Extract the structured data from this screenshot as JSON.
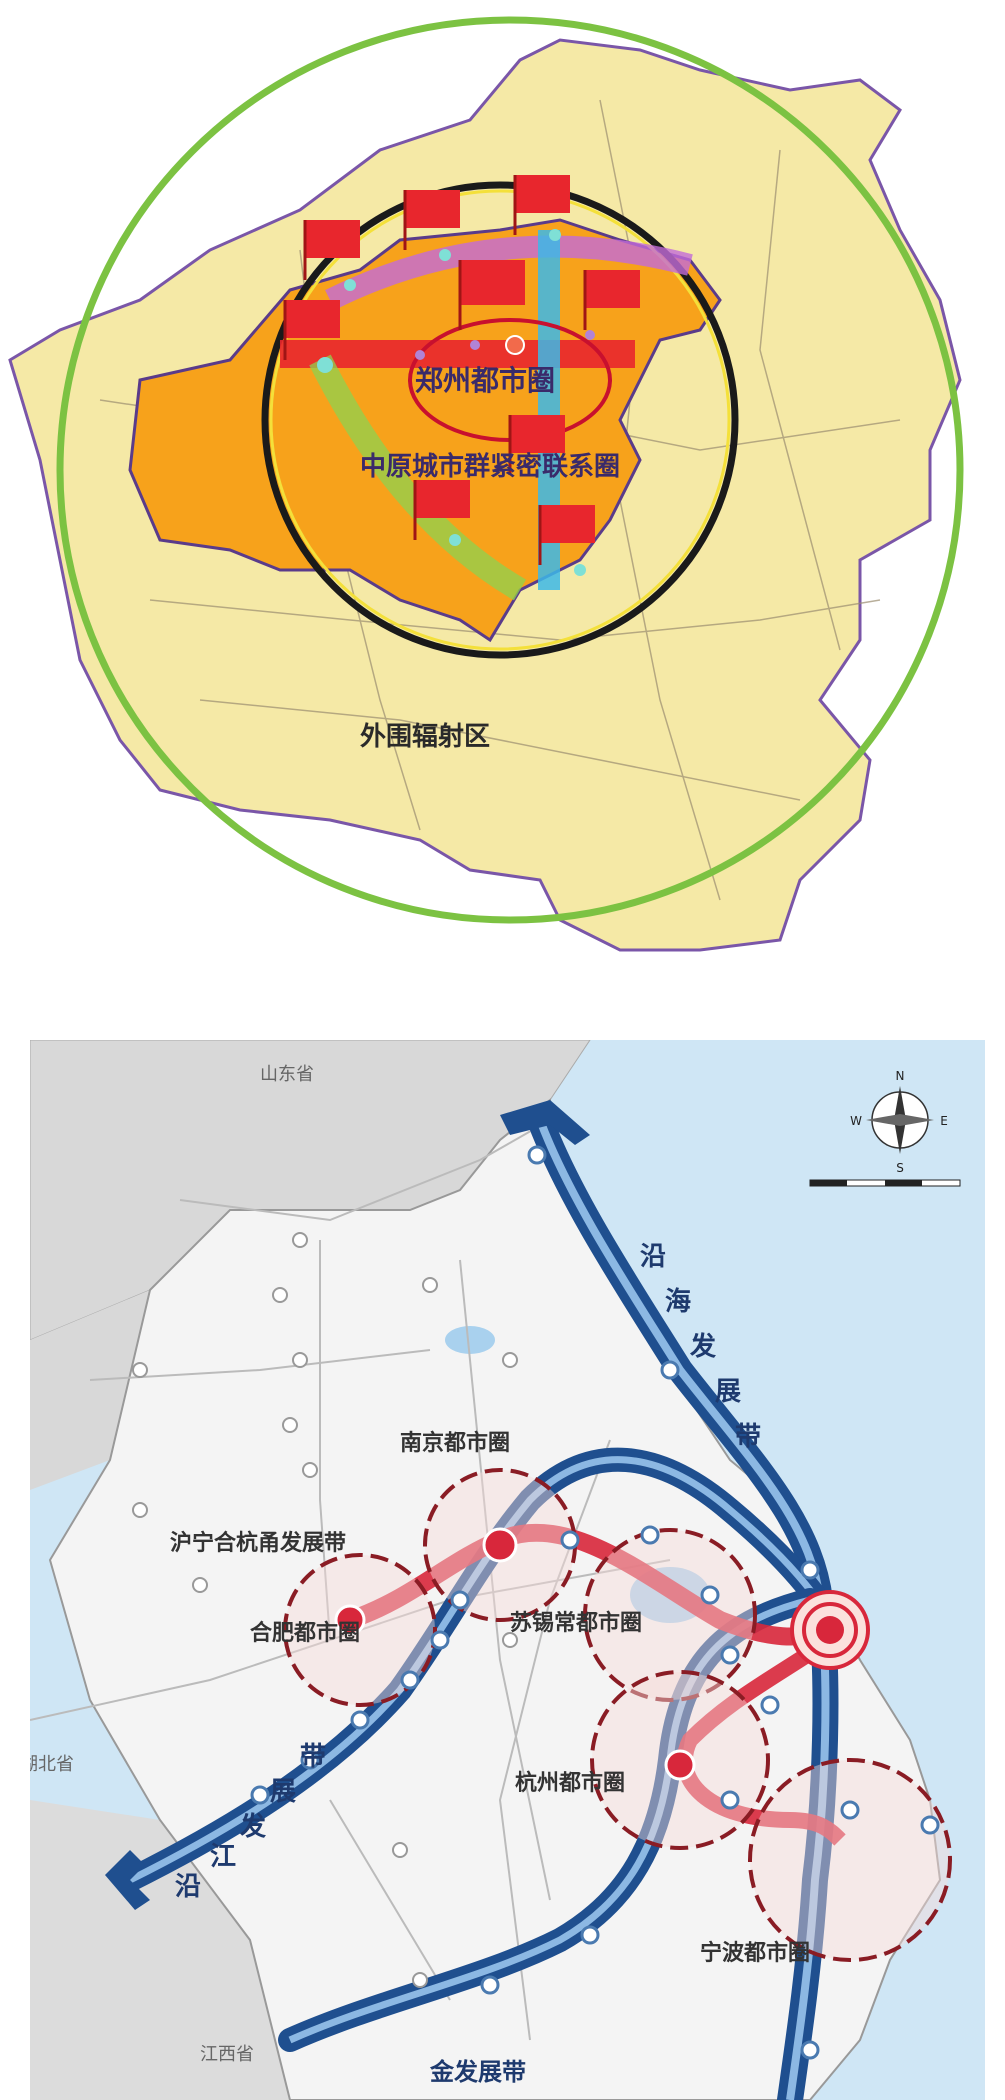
{
  "map1": {
    "labels": {
      "zhengzhou_metro": "郑州都市圈",
      "central_plains": "中原城市群紧密联系圈",
      "outer_radiation": "外围辐射区"
    },
    "colors": {
      "province_fill": "#f5e9a6",
      "core_fill": "#f7a21b",
      "outer_ring": "#7cc242",
      "inner_ring": "#1a1a1a",
      "band_red": "#e8262d"
    }
  },
  "map2": {
    "labels": {
      "shandong": "山东省",
      "hubei": "湖北省",
      "jiangxi": "江西省",
      "coastal_belt": [
        "沿",
        "海",
        "发",
        "展",
        "带"
      ],
      "yangtze_belt": [
        "沿",
        "江",
        "发",
        "展",
        "带"
      ],
      "corridor": "沪宁合杭甬发展带",
      "nanjing_metro": "南京都市圈",
      "hefei_metro": "合肥都市圈",
      "suxichang_metro": "苏锡常都市圈",
      "hangzhou_metro": "杭州都市圈",
      "ningbo_metro": "宁波都市圈",
      "jinfa_belt": "金发展带"
    },
    "compass": {
      "n": "N",
      "s": "S",
      "e": "E",
      "w": "W"
    },
    "colors": {
      "sea": "#cfe6f5",
      "land": "#f2f2f2",
      "belt_blue": "#1f4f8f",
      "corridor_red": "#d8273b",
      "metro_circle": "#8a1c24"
    }
  }
}
